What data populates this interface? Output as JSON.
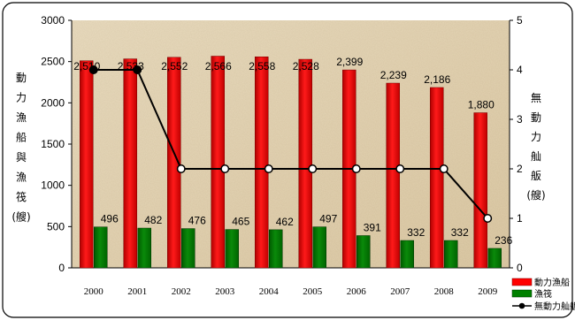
{
  "chart_data": {
    "type": "bar",
    "categories": [
      "2000",
      "2001",
      "2002",
      "2003",
      "2004",
      "2005",
      "2006",
      "2007",
      "2008",
      "2009"
    ],
    "series": [
      {
        "name": "動力漁船",
        "axis": "left",
        "type": "bar",
        "color": "#ff0000",
        "values": [
          2510,
          2533,
          2552,
          2566,
          2558,
          2528,
          2399,
          2239,
          2186,
          1880
        ],
        "labels": [
          "2,510",
          "2,533",
          "2,552",
          "2,566",
          "2,558",
          "2,528",
          "2,399",
          "2,239",
          "2,186",
          "1,880"
        ]
      },
      {
        "name": "漁筏",
        "axis": "left",
        "type": "bar",
        "color": "#008000",
        "values": [
          496,
          482,
          476,
          465,
          462,
          497,
          391,
          332,
          332,
          236
        ],
        "labels": [
          "496",
          "482",
          "476",
          "465",
          "462",
          "497",
          "391",
          "332",
          "332",
          "236"
        ]
      },
      {
        "name": "無動力舢舨",
        "axis": "right",
        "type": "line",
        "color": "#000000",
        "values": [
          4,
          4,
          2,
          2,
          2,
          2,
          2,
          2,
          2,
          1
        ]
      }
    ],
    "y_left": {
      "label_chars": [
        "動",
        "力",
        "漁",
        "船",
        "與",
        "漁",
        "筏",
        "(艘)"
      ],
      "ylim": [
        0,
        3000
      ],
      "ticks": [
        0,
        500,
        1000,
        1500,
        2000,
        2500,
        3000
      ]
    },
    "y_right": {
      "label_chars": [
        "無",
        "動",
        "力",
        "舢",
        "舨",
        "(艘)"
      ],
      "ylim": [
        0,
        5
      ],
      "ticks": [
        0,
        1,
        2,
        3,
        4,
        5
      ]
    },
    "legend_position": "bottom-right",
    "grid": false
  }
}
